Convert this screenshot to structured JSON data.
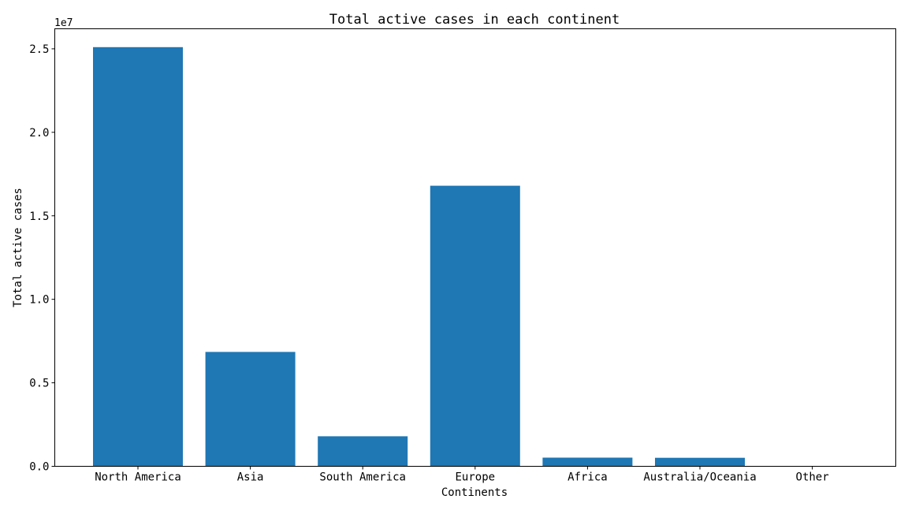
{
  "chart_data": {
    "type": "bar",
    "title": "Total active cases in each continent",
    "xlabel": "Continents",
    "ylabel": "Total active cases",
    "y_scale_label": "1e7",
    "categories": [
      "North America",
      "Asia",
      "South America",
      "Europe",
      "Africa",
      "Australia/Oceania",
      "Other"
    ],
    "values": [
      25100000,
      6850000,
      1800000,
      16800000,
      520000,
      510000,
      0
    ],
    "ylim": [
      0,
      26200000
    ],
    "yticks": [
      0,
      5000000,
      10000000,
      15000000,
      20000000,
      25000000
    ],
    "ytick_labels": [
      "0.0",
      "0.5",
      "1.0",
      "1.5",
      "2.0",
      "2.5"
    ],
    "bar_color": "#1f77b4",
    "grid": false,
    "legend": "none"
  }
}
